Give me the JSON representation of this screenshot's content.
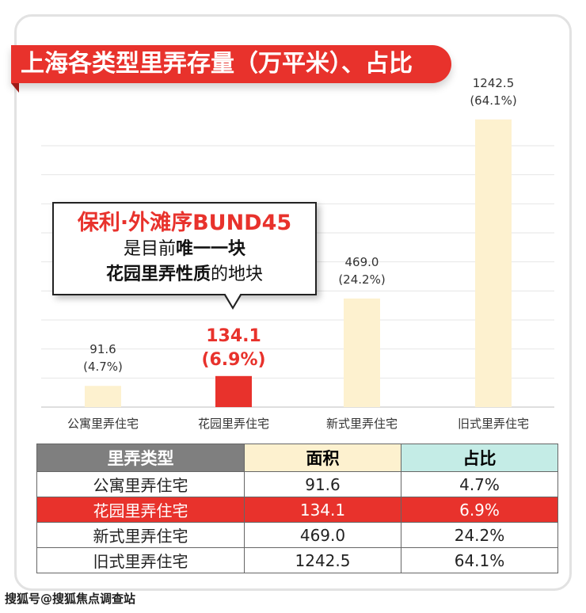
{
  "title": "上海各类型里弄存量（万平米）、占比",
  "colors": {
    "accent": "#e8322c",
    "bar": "#fdf1cf",
    "header_type": "#7f7f7f",
    "header_area": "#fdf1cf",
    "header_share": "#c4ece6"
  },
  "callout": {
    "line1": "保利·外滩序BUND45",
    "line2_normal": "是目前",
    "line2_bold": "唯一一块",
    "line3_bold": "花园里弄性质",
    "line3_normal": "的地块"
  },
  "chart_data": {
    "type": "bar",
    "title": "上海各类型里弄存量（万平米）、占比",
    "categories": [
      "公寓里弄住宅",
      "花园里弄住宅",
      "新式里弄住宅",
      "旧式里弄住宅"
    ],
    "values": [
      91.6,
      134.1,
      469.0,
      1242.5
    ],
    "value_labels": [
      "91.6",
      "134.1",
      "469.0",
      "1242.5"
    ],
    "share_labels": [
      "(4.7%)",
      "(6.9%)",
      "(24.2%)",
      "(64.1%)"
    ],
    "highlight_index": 1,
    "ylim": [
      0,
      1300
    ],
    "grid": true,
    "xlabel": "",
    "ylabel": ""
  },
  "table": {
    "headers": [
      "里弄类型",
      "面积",
      "占比"
    ],
    "rows": [
      [
        "公寓里弄住宅",
        "91.6",
        "4.7%"
      ],
      [
        "花园里弄住宅",
        "134.1",
        "6.9%"
      ],
      [
        "新式里弄住宅",
        "469.0",
        "24.2%"
      ],
      [
        "旧式里弄住宅",
        "1242.5",
        "64.1%"
      ]
    ],
    "highlight_row": 1
  },
  "footer": "搜狐号@搜狐焦点调查站"
}
